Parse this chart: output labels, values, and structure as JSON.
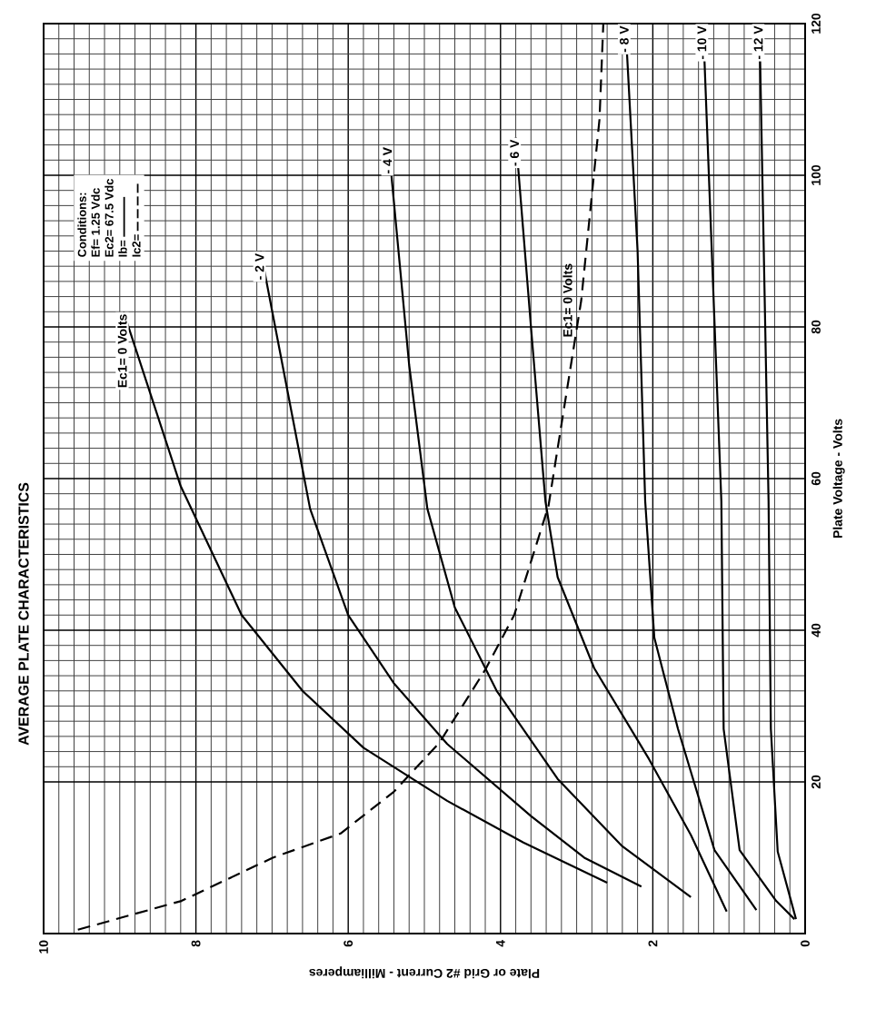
{
  "chart_data": {
    "type": "line",
    "title": "AVERAGE PLATE CHARACTERISTICS",
    "xlabel": "Plate or Grid #2 Current - Milliamperes",
    "ylabel": "Plate Voltage - Volts",
    "annotations": [
      "Conditions:",
      "Ef= 1.25 Vdc",
      "Ec2= 67.5 Vdc",
      "Ib=",
      "Ic2="
    ],
    "xlim": [
      10,
      0
    ],
    "ylim": [
      0,
      120
    ],
    "xticks": [
      10,
      8,
      6,
      4,
      2,
      0
    ],
    "yticks": [
      20,
      40,
      60,
      80,
      100,
      120
    ],
    "grid": true,
    "marker": "none",
    "line_style": "solid",
    "series": [
      {
        "name": "Ec1= 0 Volts",
        "color": "#000000",
        "x": [
          8.95,
          8.2,
          7.4,
          6.6,
          5.8,
          4.7,
          3.7,
          2.6
        ],
        "values": [
          82,
          59,
          42,
          32,
          24.5,
          17.5,
          12,
          6.7
        ]
      },
      {
        "name": "- 2 V",
        "color": "#000000",
        "x": [
          7.15,
          6.5,
          6.0,
          5.4,
          4.7,
          3.6,
          2.9,
          2.15
        ],
        "values": [
          90,
          56,
          42,
          33,
          25,
          15.5,
          10,
          6.2
        ]
      },
      {
        "name": "- 4 V",
        "color": "#000000",
        "x": [
          5.47,
          5.2,
          4.96,
          4.6,
          4.05,
          3.25,
          2.4,
          1.5
        ],
        "values": [
          104,
          75,
          56,
          43,
          32,
          20.4,
          11.5,
          4.8
        ]
      },
      {
        "name": "- 6 V",
        "color": "#000000",
        "x": [
          3.8,
          3.6,
          3.41,
          3.25,
          2.77,
          2.05,
          1.5,
          1.03
        ],
        "values": [
          105,
          80,
          57,
          47,
          35,
          23,
          13,
          2.9
        ]
      },
      {
        "name": "- 8 V",
        "color": "#000000",
        "x": [
          2.36,
          2.2,
          2.1,
          1.98,
          1.67,
          1.19,
          0.64
        ],
        "values": [
          120,
          90,
          57,
          39,
          27,
          11,
          3.1
        ]
      },
      {
        "name": "- 10 V",
        "color": "#000000",
        "x": [
          1.34,
          1.1,
          1.07,
          0.86,
          0.38,
          0.14
        ],
        "values": [
          120,
          57,
          27,
          11,
          4.3,
          1.9
        ]
      },
      {
        "name": "- 12 V",
        "color": "#000000",
        "x": [
          0.6,
          0.48,
          0.45,
          0.36,
          0.12
        ],
        "values": [
          120,
          57,
          27,
          10.8,
          1.9
        ]
      },
      {
        "name": "Ec1= 0 Volts",
        "color": "#000000",
        "line_style": "dashed",
        "x": [
          9.55,
          8.19,
          6.99,
          6.1,
          5.4,
          4.8,
          4.2,
          3.82,
          3.37,
          2.94,
          2.7,
          2.65
        ],
        "values": [
          0.5,
          4.3,
          10,
          13.2,
          18.7,
          25.2,
          34.8,
          42,
          56.4,
          83.5,
          107.4,
          120
        ]
      }
    ]
  }
}
